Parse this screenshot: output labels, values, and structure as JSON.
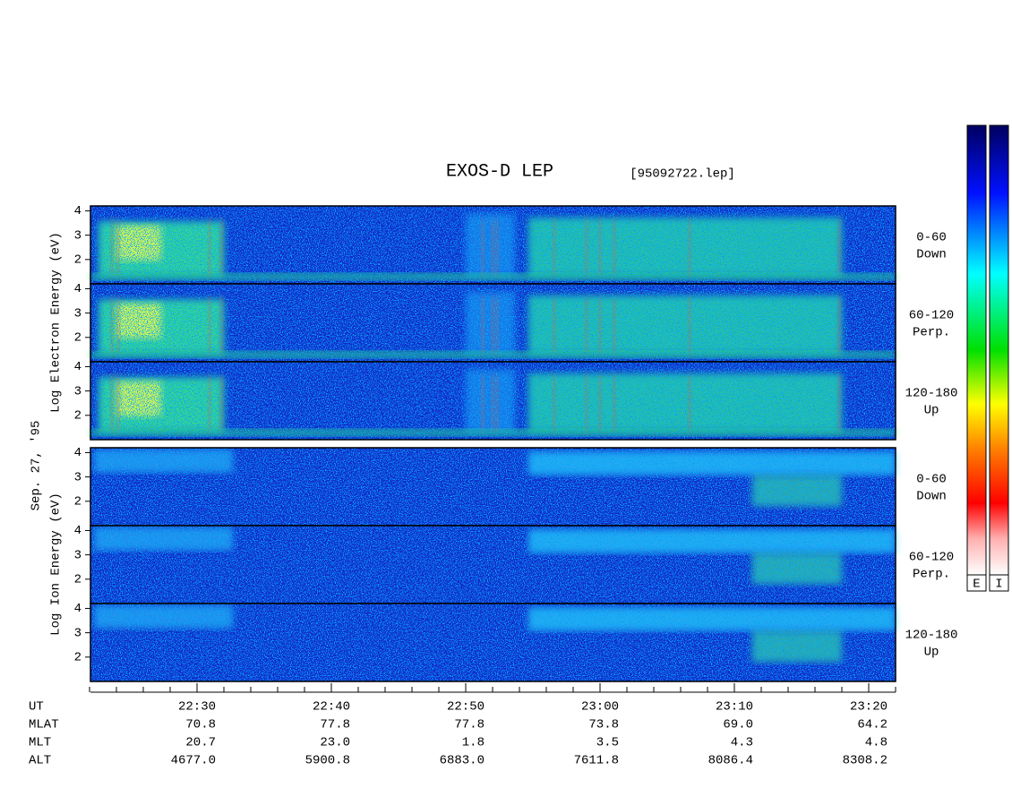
{
  "title": "EXOS-D LEP",
  "file": "[95092722.lep]",
  "date": "Sep. 27, '95",
  "axis_labels": [
    "Log Electron Energy (eV)",
    "Log Ion Energy (eV)"
  ],
  "colorbar_labels": [
    "E",
    "I"
  ],
  "chart_data": [
    {
      "type": "spectrogram",
      "species": "electron",
      "angle": "0-60",
      "direction": "Down",
      "ylim": [
        1,
        4.2
      ],
      "yticks": [
        2,
        3,
        4
      ]
    },
    {
      "type": "spectrogram",
      "species": "electron",
      "angle": "60-120",
      "direction": "Perp.",
      "ylim": [
        1,
        4.2
      ],
      "yticks": [
        2,
        3,
        4
      ]
    },
    {
      "type": "spectrogram",
      "species": "electron",
      "angle": "120-180",
      "direction": "Up",
      "ylim": [
        1,
        4.2
      ],
      "yticks": [
        2,
        3,
        4
      ]
    },
    {
      "type": "spectrogram",
      "species": "ion",
      "angle": "0-60",
      "direction": "Down",
      "ylim": [
        1,
        4.2
      ],
      "yticks": [
        2,
        3,
        4
      ]
    },
    {
      "type": "spectrogram",
      "species": "ion",
      "angle": "60-120",
      "direction": "Perp.",
      "ylim": [
        1,
        4.2
      ],
      "yticks": [
        2,
        3,
        4
      ]
    },
    {
      "type": "spectrogram",
      "species": "ion",
      "angle": "120-180",
      "direction": "Up",
      "ylim": [
        1,
        4.2
      ],
      "yticks": [
        2,
        3,
        4
      ]
    }
  ],
  "ephemeris": [
    {
      "name": "UT",
      "values": [
        "22:30",
        "22:40",
        "22:50",
        "23:00",
        "23:10",
        "23:20"
      ]
    },
    {
      "name": "MLAT",
      "values": [
        "70.8",
        "77.8",
        "77.8",
        "73.8",
        "69.0",
        "64.2"
      ]
    },
    {
      "name": "MLT",
      "values": [
        "20.7",
        "23.0",
        "1.8",
        "3.5",
        "4.3",
        "4.8"
      ]
    },
    {
      "name": "ALT",
      "values": [
        "4677.0",
        "5900.8",
        "6883.0",
        "7611.8",
        "8086.4",
        "8308.2"
      ]
    }
  ]
}
